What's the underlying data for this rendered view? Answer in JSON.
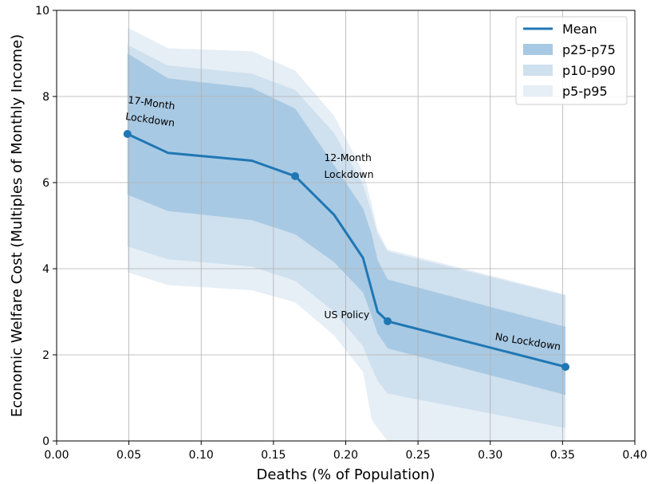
{
  "chart_data": {
    "type": "line",
    "xlabel": "Deaths (% of Population)",
    "ylabel": "Economic Welfare Cost (Multiples of Monthly Income)",
    "xlim": [
      0.0,
      0.4
    ],
    "ylim": [
      0,
      10
    ],
    "x_ticks": [
      "0.00",
      "0.05",
      "0.10",
      "0.15",
      "0.20",
      "0.25",
      "0.30",
      "0.35",
      "0.40"
    ],
    "y_ticks": [
      "0",
      "2",
      "4",
      "6",
      "8",
      "10"
    ],
    "grid": true,
    "legend_placement": "top-right",
    "colors": {
      "mean": "#1f77b4",
      "p25_p75": "#a8c9e3",
      "p10_p90": "#cfe0ee",
      "p5_p95": "#e6eef6"
    },
    "series": [
      {
        "name": "Mean",
        "x": [
          0.049,
          0.077,
          0.135,
          0.165,
          0.192,
          0.212,
          0.218,
          0.222,
          0.229,
          0.352
        ],
        "y": [
          7.13,
          6.69,
          6.51,
          6.15,
          5.25,
          4.25,
          3.5,
          3.0,
          2.78,
          1.72
        ]
      },
      {
        "name": "p25-p75",
        "x": [
          0.049,
          0.077,
          0.135,
          0.165,
          0.192,
          0.212,
          0.218,
          0.222,
          0.229,
          0.352
        ],
        "lower": [
          5.72,
          5.34,
          5.13,
          4.8,
          4.15,
          3.45,
          2.9,
          2.5,
          2.15,
          1.07
        ],
        "upper": [
          9.0,
          8.42,
          8.2,
          7.72,
          6.4,
          5.4,
          4.8,
          4.2,
          3.75,
          2.65
        ]
      },
      {
        "name": "p10-p90",
        "x": [
          0.049,
          0.077,
          0.135,
          0.165,
          0.192,
          0.212,
          0.218,
          0.222,
          0.229,
          0.352
        ],
        "lower": [
          4.52,
          4.22,
          4.05,
          3.72,
          3.0,
          2.2,
          1.7,
          1.4,
          1.1,
          0.3
        ],
        "upper": [
          9.2,
          8.72,
          8.53,
          8.15,
          7.15,
          5.95,
          5.3,
          4.8,
          4.4,
          3.38
        ]
      },
      {
        "name": "p5-p95",
        "x": [
          0.049,
          0.077,
          0.135,
          0.165,
          0.192,
          0.212,
          0.218,
          0.222,
          0.229,
          0.352
        ],
        "lower": [
          3.92,
          3.62,
          3.5,
          3.22,
          2.45,
          1.6,
          0.5,
          0.3,
          0.0,
          0.0
        ],
        "upper": [
          9.6,
          9.12,
          9.05,
          8.6,
          7.55,
          6.25,
          5.5,
          4.9,
          4.45,
          3.4
        ]
      }
    ],
    "points": [
      {
        "x": 0.049,
        "y": 7.13
      },
      {
        "x": 0.165,
        "y": 6.15
      },
      {
        "x": 0.229,
        "y": 2.78
      },
      {
        "x": 0.352,
        "y": 1.72
      }
    ],
    "annotations": [
      {
        "lines": [
          "17-Month",
          "Lockdown"
        ],
        "x": 0.049,
        "y": 7.85,
        "rotate": 8
      },
      {
        "lines": [
          "12-Month",
          "Lockdown"
        ],
        "x": 0.185,
        "y": 6.5,
        "rotate": 0
      },
      {
        "lines": [
          "US Policy"
        ],
        "x": 0.185,
        "y": 2.85,
        "rotate": 0
      },
      {
        "lines": [
          "No Lockdown"
        ],
        "x": 0.303,
        "y": 2.35,
        "rotate": 9
      }
    ],
    "legend": [
      "Mean",
      "p25-p75",
      "p10-p90",
      "p5-p95"
    ]
  }
}
